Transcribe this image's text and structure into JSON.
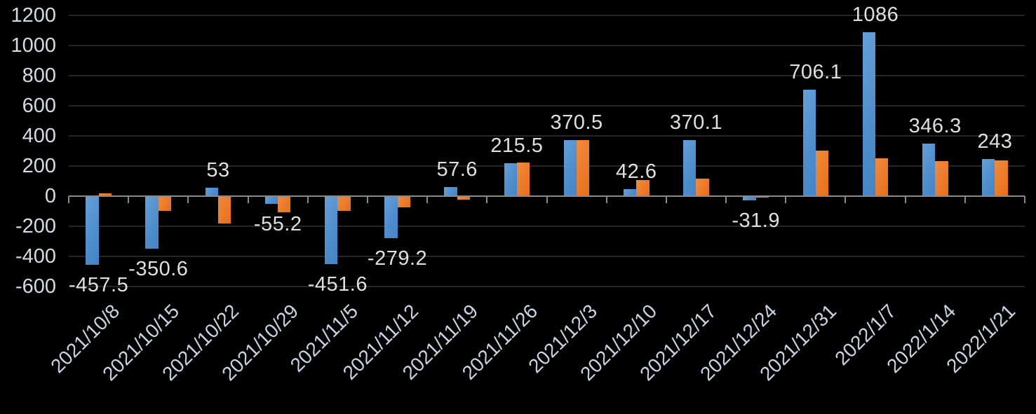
{
  "chart_data": {
    "type": "bar",
    "title": "",
    "xlabel": "",
    "ylabel": "",
    "categories": [
      "2021/10/8",
      "2021/10/15",
      "2021/10/22",
      "2021/10/29",
      "2021/11/5",
      "2021/11/12",
      "2021/11/19",
      "2021/11/26",
      "2021/12/3",
      "2021/12/10",
      "2021/12/17",
      "2021/12/24",
      "2021/12/31",
      "2022/1/7",
      "2022/1/14",
      "2022/1/21"
    ],
    "series": [
      {
        "name": "blue-series",
        "color": "#4f8ecd",
        "values": [
          -457.5,
          -350.6,
          53,
          -55.2,
          -451.6,
          -279.2,
          57.6,
          215.5,
          370.5,
          42.6,
          370.1,
          -31.9,
          706.1,
          1086,
          346.3,
          243
        ],
        "data_labels": [
          "-457.5",
          "-350.6",
          "53",
          "-55.2",
          "-451.6",
          "-279.2",
          "57.6",
          "215.5",
          "370.5",
          "42.6",
          "370.1",
          "-31.9",
          "706.1",
          "1086",
          "346.3",
          "243"
        ]
      },
      {
        "name": "orange-series",
        "color": "#ec7b2a",
        "values_estimated": true,
        "values": [
          15,
          -100,
          -185,
          -110,
          -100,
          -75,
          -25,
          220,
          372,
          105,
          112,
          -10,
          298,
          250,
          228,
          235
        ],
        "data_labels": null
      }
    ],
    "ylim": [
      -600,
      1200
    ],
    "ytick_step": 200,
    "y_tick_labels": [
      "1200",
      "1000",
      "800",
      "600",
      "400",
      "200",
      "0",
      "-200",
      "-400",
      "-600"
    ],
    "grid": "horizontal",
    "legend": "none",
    "background_color": "#000000",
    "axis_color": "#8a8a8a",
    "gridline_color": "#252525",
    "data_label_color": "#e0dfdc",
    "tick_label_color": "#d5dbe3",
    "x_label_rotation_deg": -45
  }
}
